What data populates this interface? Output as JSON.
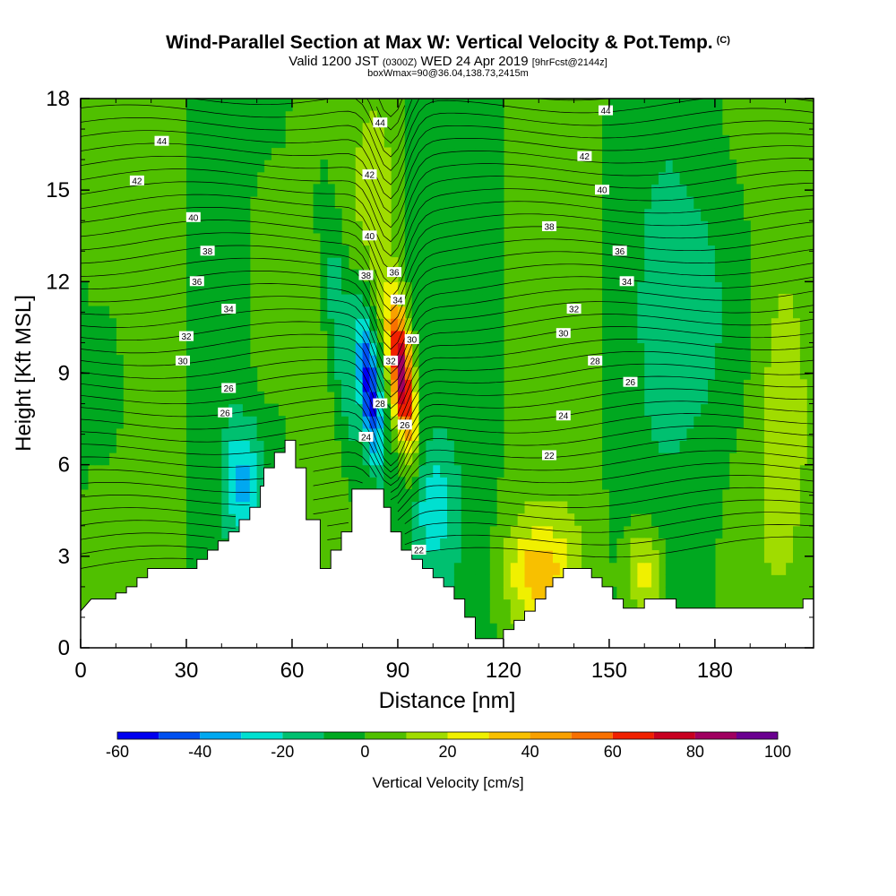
{
  "title": {
    "main": "Wind-Parallel Section at Max W: Vertical Velocity & Pot.Temp.",
    "mark": "(C)",
    "valid_prefix": "Valid 1200 JST",
    "valid_utc": "(0300Z)",
    "valid_date": "WED 24 Apr 2019",
    "forecast": "[9hrFcst@2144z]",
    "box_info": "boxWmax=90@36.04,138.73,2415m"
  },
  "colorbar": {
    "label": "Vertical Velocity [cm/s]",
    "ticks": [
      -60,
      -40,
      -20,
      0,
      20,
      40,
      60,
      80,
      100
    ],
    "levels": [
      -60,
      -50,
      -40,
      -30,
      -20,
      -10,
      0,
      10,
      20,
      30,
      40,
      50,
      60,
      70,
      80,
      90,
      100
    ],
    "colors": [
      "#0000f0",
      "#0050f0",
      "#00a8f0",
      "#00e0d0",
      "#00c070",
      "#00a820",
      "#50c000",
      "#a0dc00",
      "#f0f000",
      "#f8c000",
      "#f8a000",
      "#f87000",
      "#f02000",
      "#c80020",
      "#a00060",
      "#6a0090"
    ]
  },
  "chart_data": {
    "type": "heatmap",
    "x": {
      "label": "Distance [nm]",
      "ticks": [
        0,
        30,
        60,
        90,
        120,
        150,
        180
      ],
      "range": [
        0,
        208
      ]
    },
    "y": {
      "label": "Height [Kft MSL]",
      "ticks": [
        0,
        3,
        6,
        9,
        12,
        15,
        18
      ],
      "range": [
        0,
        18
      ]
    },
    "field": "Vertical Velocity [cm/s]",
    "contour_field": "Pot.Temp. (C)",
    "max_vertical_velocity": 90,
    "terrain_kft": [
      [
        0,
        1.2
      ],
      [
        3,
        1.6
      ],
      [
        10,
        1.6
      ],
      [
        10,
        1.8
      ],
      [
        13,
        1.8
      ],
      [
        13,
        2.0
      ],
      [
        16,
        2.0
      ],
      [
        16,
        2.3
      ],
      [
        19,
        2.3
      ],
      [
        19,
        2.6
      ],
      [
        33,
        2.6
      ],
      [
        33,
        2.9
      ],
      [
        36,
        2.9
      ],
      [
        36,
        3.2
      ],
      [
        39,
        3.2
      ],
      [
        39,
        3.5
      ],
      [
        42,
        3.5
      ],
      [
        42,
        3.8
      ],
      [
        45,
        3.8
      ],
      [
        45,
        4.2
      ],
      [
        48,
        4.2
      ],
      [
        48,
        4.6
      ],
      [
        51,
        4.6
      ],
      [
        51,
        5.3
      ],
      [
        52,
        5.3
      ],
      [
        52,
        5.9
      ],
      [
        55,
        5.9
      ],
      [
        55,
        6.4
      ],
      [
        58,
        6.4
      ],
      [
        58,
        6.8
      ],
      [
        61,
        6.8
      ],
      [
        61,
        5.9
      ],
      [
        64,
        5.9
      ],
      [
        64,
        4.2
      ],
      [
        68,
        4.2
      ],
      [
        68,
        2.6
      ],
      [
        71,
        2.6
      ],
      [
        71,
        3.2
      ],
      [
        74,
        3.2
      ],
      [
        74,
        3.8
      ],
      [
        77,
        3.8
      ],
      [
        77,
        5.2
      ],
      [
        86,
        5.2
      ],
      [
        86,
        4.6
      ],
      [
        88,
        4.6
      ],
      [
        88,
        3.8
      ],
      [
        91,
        3.8
      ],
      [
        91,
        3.2
      ],
      [
        94,
        3.2
      ],
      [
        94,
        2.9
      ],
      [
        97,
        2.9
      ],
      [
        97,
        2.6
      ],
      [
        100,
        2.6
      ],
      [
        100,
        2.3
      ],
      [
        103,
        2.3
      ],
      [
        103,
        2.0
      ],
      [
        106,
        2.0
      ],
      [
        106,
        1.6
      ],
      [
        109,
        1.6
      ],
      [
        109,
        1.0
      ],
      [
        112,
        1.0
      ],
      [
        112,
        0.3
      ],
      [
        120,
        0.3
      ],
      [
        120,
        0.6
      ],
      [
        123,
        0.6
      ],
      [
        123,
        0.9
      ],
      [
        126,
        0.9
      ],
      [
        126,
        1.2
      ],
      [
        129,
        1.2
      ],
      [
        129,
        1.6
      ],
      [
        132,
        1.6
      ],
      [
        132,
        2.0
      ],
      [
        134,
        2.0
      ],
      [
        134,
        2.3
      ],
      [
        137,
        2.3
      ],
      [
        137,
        2.6
      ],
      [
        145,
        2.6
      ],
      [
        145,
        2.3
      ],
      [
        148,
        2.3
      ],
      [
        148,
        2.0
      ],
      [
        151,
        2.0
      ],
      [
        151,
        1.6
      ],
      [
        154,
        1.6
      ],
      [
        154,
        1.3
      ],
      [
        160,
        1.3
      ],
      [
        160,
        1.6
      ],
      [
        169,
        1.6
      ],
      [
        169,
        1.3
      ],
      [
        205,
        1.3
      ],
      [
        205,
        1.6
      ],
      [
        208,
        1.6
      ]
    ],
    "vertical_velocity_features": [
      {
        "x": 82,
        "y": 8.5,
        "value": -60
      },
      {
        "x": 91,
        "y": 9.0,
        "value": 90
      },
      {
        "x": 130,
        "y": 2.5,
        "value": 30
      },
      {
        "x": 160,
        "y": 2.5,
        "value": 30
      }
    ],
    "isentrope_labels": [
      {
        "text": "44",
        "x": 23,
        "y": 16.6
      },
      {
        "text": "42",
        "x": 16,
        "y": 15.3
      },
      {
        "text": "40",
        "x": 32,
        "y": 14.1
      },
      {
        "text": "38",
        "x": 36,
        "y": 13.0
      },
      {
        "text": "36",
        "x": 33,
        "y": 12.0
      },
      {
        "text": "34",
        "x": 42,
        "y": 11.1
      },
      {
        "text": "32",
        "x": 30,
        "y": 10.2
      },
      {
        "text": "30",
        "x": 29,
        "y": 9.4
      },
      {
        "text": "26",
        "x": 42,
        "y": 8.5
      },
      {
        "text": "26",
        "x": 41,
        "y": 7.7
      },
      {
        "text": "44",
        "x": 85,
        "y": 17.2
      },
      {
        "text": "42",
        "x": 82,
        "y": 15.5
      },
      {
        "text": "40",
        "x": 82,
        "y": 13.5
      },
      {
        "text": "38",
        "x": 81,
        "y": 12.2
      },
      {
        "text": "36",
        "x": 89,
        "y": 12.3
      },
      {
        "text": "34",
        "x": 90,
        "y": 11.4
      },
      {
        "text": "30",
        "x": 94,
        "y": 10.1
      },
      {
        "text": "32",
        "x": 88,
        "y": 9.4
      },
      {
        "text": "28",
        "x": 85,
        "y": 8.0
      },
      {
        "text": "26",
        "x": 92,
        "y": 7.3
      },
      {
        "text": "24",
        "x": 81,
        "y": 6.9
      },
      {
        "text": "22",
        "x": 96,
        "y": 3.2
      },
      {
        "text": "44",
        "x": 149,
        "y": 17.6
      },
      {
        "text": "42",
        "x": 143,
        "y": 16.1
      },
      {
        "text": "40",
        "x": 148,
        "y": 15.0
      },
      {
        "text": "38",
        "x": 133,
        "y": 13.8
      },
      {
        "text": "36",
        "x": 153,
        "y": 13.0
      },
      {
        "text": "34",
        "x": 155,
        "y": 12.0
      },
      {
        "text": "32",
        "x": 140,
        "y": 11.1
      },
      {
        "text": "30",
        "x": 137,
        "y": 10.3
      },
      {
        "text": "28",
        "x": 146,
        "y": 9.4
      },
      {
        "text": "26",
        "x": 156,
        "y": 8.7
      },
      {
        "text": "24",
        "x": 137,
        "y": 7.6
      },
      {
        "text": "22",
        "x": 133,
        "y": 6.3
      }
    ]
  }
}
